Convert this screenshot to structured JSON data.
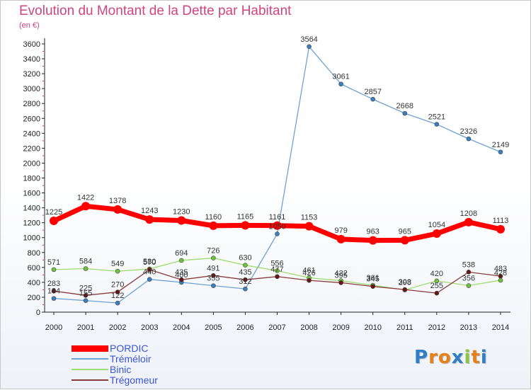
{
  "header": {
    "title": "Evolution du Montant de la Dette par Habitant",
    "subtitle": "(en €)"
  },
  "brand": {
    "letters": [
      "P",
      "r",
      "o",
      "x",
      "i",
      "t",
      "i"
    ],
    "colors": [
      "#2e7fc8",
      "#e8801a",
      "#e8801a",
      "#2e7fc8",
      "#8cc63e",
      "#e8801a",
      "#2e7fc8"
    ]
  },
  "colors": {
    "title": "#d0447f",
    "axis": "#222222",
    "grid": "#dddddd",
    "legend_text": "#3b55d8"
  },
  "chart_data": {
    "type": "line",
    "title": "Evolution du Montant de la Dette par Habitant",
    "subtitle": "(en €)",
    "x": [
      2000,
      2001,
      2002,
      2003,
      2004,
      2005,
      2006,
      2007,
      2008,
      2009,
      2010,
      2011,
      2012,
      2013,
      2014
    ],
    "ylim": [
      0,
      3600
    ],
    "yticks": [
      0,
      200,
      400,
      600,
      800,
      1000,
      1200,
      1400,
      1600,
      1800,
      2000,
      2200,
      2400,
      2600,
      2800,
      3000,
      3200,
      3400,
      3600
    ],
    "grid": false,
    "legend_position": "bottom-left",
    "series": [
      {
        "name": "PORDIC",
        "color": "#ff0000",
        "point_color": "#ff0000",
        "values": [
          1225,
          1422,
          1378,
          1243,
          1230,
          1160,
          1165,
          1161,
          1153,
          979,
          963,
          965,
          1054,
          1208,
          1113
        ],
        "labels": [
          "1225",
          "1422",
          "1378",
          "1243",
          "1230",
          "1160",
          "1165",
          "1161",
          "1153",
          "979",
          "963",
          "965",
          "1054",
          "1208",
          "1113"
        ]
      },
      {
        "name": "Tréméloir",
        "color": "#6ea1d4",
        "point_color": "#3a7fc1",
        "values": [
          184,
          155,
          122,
          440,
          400,
          355,
          312,
          1050,
          3564,
          3061,
          2857,
          2668,
          2521,
          2326,
          2149
        ],
        "labels": [
          "184",
          "155",
          "122",
          "440",
          "400",
          "355",
          "312",
          "1050",
          "3564",
          "3061",
          "2857",
          "2668",
          "2521",
          "2326",
          "2149"
        ]
      },
      {
        "name": "Binic",
        "color": "#a0dc70",
        "point_color": "#6fc43c",
        "values": [
          571,
          584,
          549,
          580,
          694,
          726,
          630,
          556,
          461,
          422,
          361,
          298,
          420,
          356,
          428
        ],
        "labels": [
          "571",
          "584",
          "549",
          "580",
          "694",
          "726",
          "630",
          "556",
          "461",
          "422",
          "361",
          "298",
          "420",
          "356",
          "428"
        ]
      },
      {
        "name": "Trégomeur",
        "color": "#8a3b3b",
        "point_color": "#6a1414",
        "values": [
          283,
          225,
          270,
          570,
          435,
          491,
          435,
          477,
          426,
          395,
          345,
          303,
          255,
          538,
          483
        ],
        "labels": [
          "283",
          "225",
          "270",
          "570",
          "435",
          "491",
          "435",
          "477",
          "426",
          "395",
          "345",
          "303",
          "255",
          "538",
          "483"
        ]
      }
    ]
  }
}
